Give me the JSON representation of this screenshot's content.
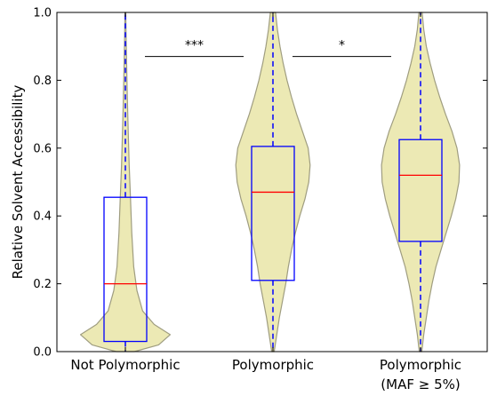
{
  "chart_data": {
    "type": "violin-box",
    "ylabel": "Relative Solvent Accessibility",
    "ylim": [
      0.0,
      1.0
    ],
    "y_ticks": [
      "0.0",
      "0.2",
      "0.4",
      "0.6",
      "0.8",
      "1.0"
    ],
    "y_tick_values": [
      0.0,
      0.2,
      0.4,
      0.6,
      0.8,
      1.0
    ],
    "categories": [
      {
        "label_lines": [
          "Not Polymorphic"
        ]
      },
      {
        "label_lines": [
          "Polymorphic"
        ]
      },
      {
        "label_lines": [
          "Polymorphic",
          "(MAF ≥ 5%)"
        ]
      }
    ],
    "boxes": [
      {
        "q1": 0.03,
        "median": 0.2,
        "q3": 0.455,
        "whisker_low": 0.0,
        "whisker_high": 1.0
      },
      {
        "q1": 0.21,
        "median": 0.47,
        "q3": 0.605,
        "whisker_low": 0.0,
        "whisker_high": 1.0
      },
      {
        "q1": 0.325,
        "median": 0.52,
        "q3": 0.625,
        "whisker_low": 0.0,
        "whisker_high": 1.0
      }
    ],
    "violins": [
      {
        "profile": [
          [
            0.0,
            0.14
          ],
          [
            0.02,
            0.52
          ],
          [
            0.05,
            0.7
          ],
          [
            0.08,
            0.45
          ],
          [
            0.12,
            0.27
          ],
          [
            0.18,
            0.18
          ],
          [
            0.25,
            0.13
          ],
          [
            0.35,
            0.1
          ],
          [
            0.45,
            0.08
          ],
          [
            0.55,
            0.06
          ],
          [
            0.65,
            0.045
          ],
          [
            0.75,
            0.03
          ],
          [
            0.85,
            0.02
          ],
          [
            0.95,
            0.01
          ],
          [
            1.0,
            0.005
          ]
        ]
      },
      {
        "profile": [
          [
            0.0,
            0.02
          ],
          [
            0.05,
            0.06
          ],
          [
            0.1,
            0.1
          ],
          [
            0.15,
            0.15
          ],
          [
            0.2,
            0.2
          ],
          [
            0.25,
            0.24
          ],
          [
            0.3,
            0.29
          ],
          [
            0.35,
            0.35
          ],
          [
            0.4,
            0.42
          ],
          [
            0.45,
            0.5
          ],
          [
            0.5,
            0.56
          ],
          [
            0.55,
            0.58
          ],
          [
            0.6,
            0.55
          ],
          [
            0.65,
            0.46
          ],
          [
            0.7,
            0.37
          ],
          [
            0.75,
            0.29
          ],
          [
            0.8,
            0.22
          ],
          [
            0.85,
            0.16
          ],
          [
            0.9,
            0.11
          ],
          [
            0.95,
            0.07
          ],
          [
            1.0,
            0.04
          ]
        ]
      },
      {
        "profile": [
          [
            0.0,
            0.02
          ],
          [
            0.05,
            0.05
          ],
          [
            0.1,
            0.09
          ],
          [
            0.15,
            0.13
          ],
          [
            0.2,
            0.18
          ],
          [
            0.25,
            0.24
          ],
          [
            0.3,
            0.32
          ],
          [
            0.35,
            0.4
          ],
          [
            0.4,
            0.48
          ],
          [
            0.45,
            0.55
          ],
          [
            0.5,
            0.6
          ],
          [
            0.55,
            0.61
          ],
          [
            0.6,
            0.57
          ],
          [
            0.65,
            0.49
          ],
          [
            0.7,
            0.39
          ],
          [
            0.75,
            0.3
          ],
          [
            0.8,
            0.22
          ],
          [
            0.85,
            0.15
          ],
          [
            0.9,
            0.09
          ],
          [
            0.95,
            0.05
          ],
          [
            1.0,
            0.025
          ]
        ]
      }
    ],
    "significance": [
      {
        "label": "***",
        "between": [
          0,
          1
        ],
        "y": 0.87
      },
      {
        "label": "*",
        "between": [
          1,
          2
        ],
        "y": 0.87
      }
    ],
    "colors": {
      "violin_fill": "#ECE9B4",
      "violin_edge": "#9F9D80",
      "box_edge": "#0000FF",
      "median": "#FF0000",
      "whisker": "#0000FF",
      "axis": "#000000"
    }
  }
}
